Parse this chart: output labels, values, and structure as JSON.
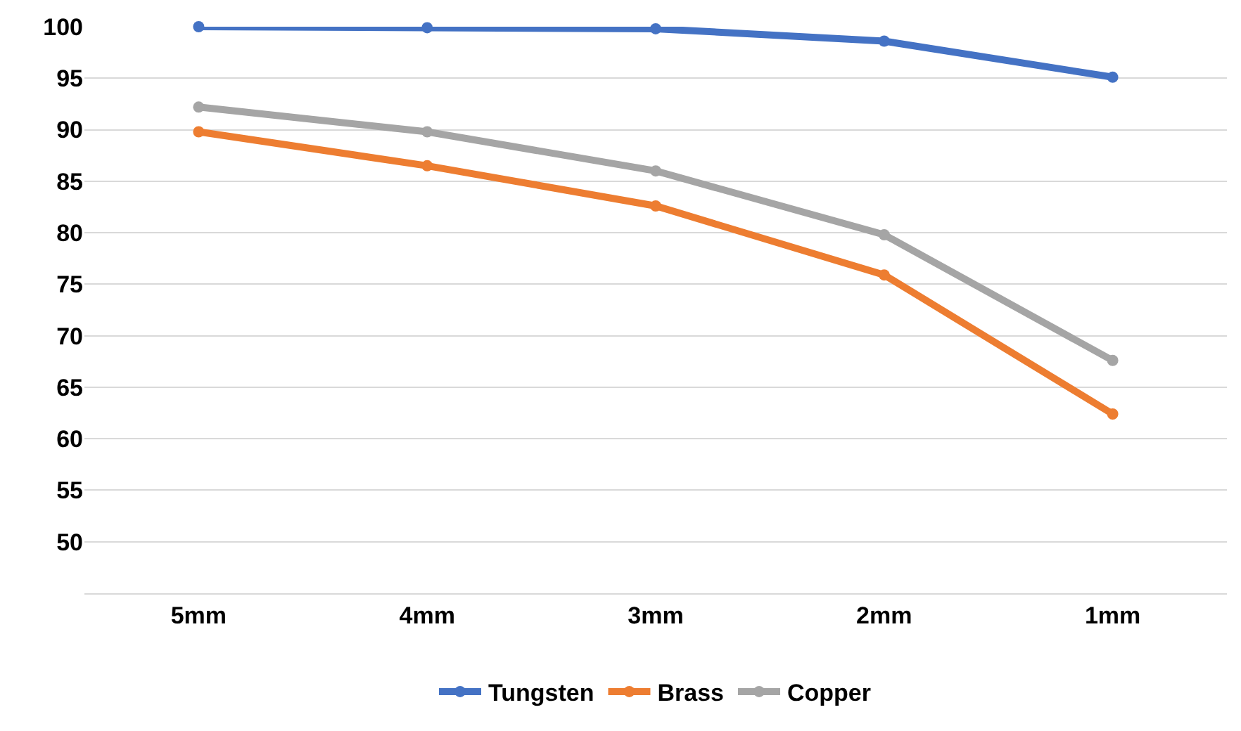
{
  "chart_data": {
    "type": "line",
    "categories": [
      "5mm",
      "4mm",
      "3mm",
      "2mm",
      "1mm"
    ],
    "series": [
      {
        "name": "Tungsten",
        "color": "#4472c4",
        "values": [
          100,
          99.9,
          99.8,
          98.6,
          95.1
        ]
      },
      {
        "name": "Brass",
        "color": "#ed7d31",
        "values": [
          89.8,
          86.5,
          82.6,
          75.9,
          62.4
        ]
      },
      {
        "name": "Copper",
        "color": "#a5a5a5",
        "values": [
          92.2,
          89.8,
          86.0,
          79.8,
          67.6
        ]
      }
    ],
    "ylim": [
      45,
      100
    ],
    "yticks": [
      50,
      55,
      60,
      65,
      70,
      75,
      80,
      85,
      90,
      95,
      100
    ],
    "grid": "y",
    "legend": "bottom",
    "marker": "circle",
    "line_style": "solid"
  }
}
